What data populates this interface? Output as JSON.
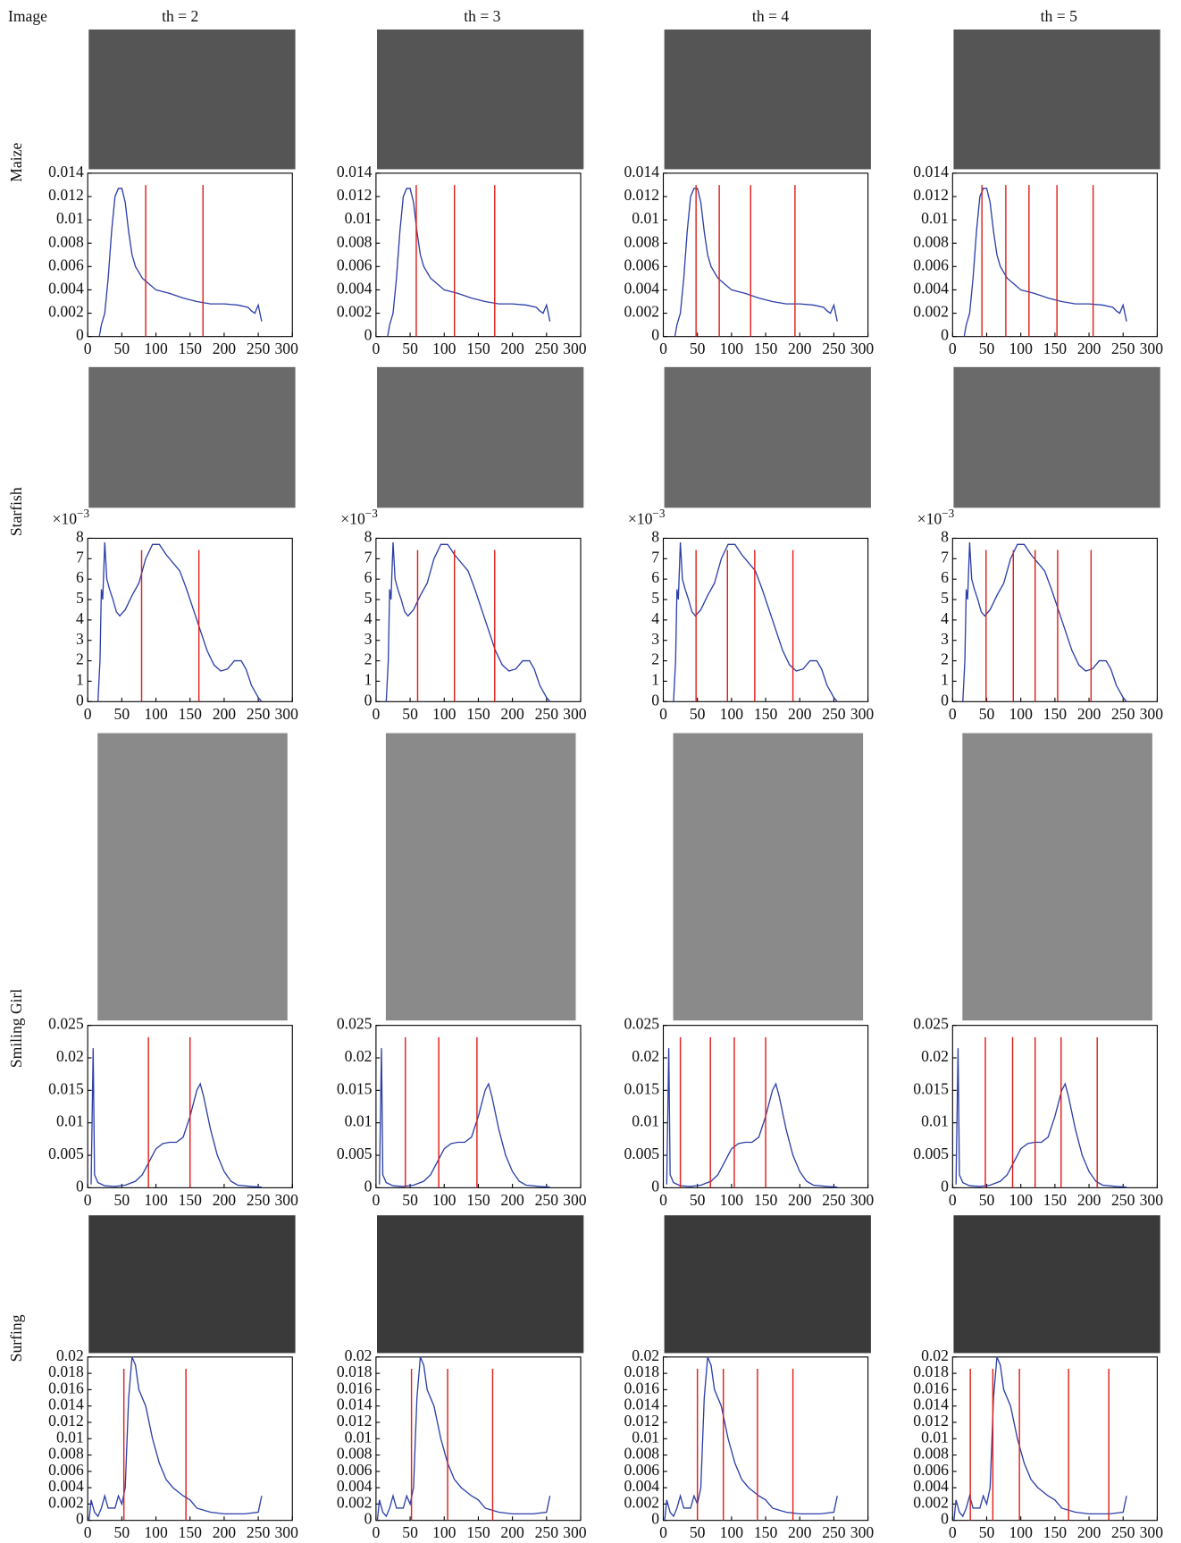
{
  "column_headers": [
    "Image",
    "th = 2",
    "th = 3",
    "th = 4",
    "th = 5"
  ],
  "chart_data": [
    {
      "type": "line",
      "row_label": "Maize",
      "color": "#2b3fa8",
      "threshold_color": "#e0201b",
      "x": [
        17,
        20,
        25,
        30,
        35,
        40,
        45,
        50,
        55,
        60,
        65,
        70,
        80,
        90,
        100,
        120,
        140,
        160,
        180,
        200,
        220,
        235,
        240,
        245,
        250,
        255
      ],
      "values": [
        0,
        0.001,
        0.002,
        0.005,
        0.009,
        0.012,
        0.0127,
        0.0127,
        0.0115,
        0.009,
        0.007,
        0.006,
        0.005,
        0.0045,
        0.004,
        0.0037,
        0.0033,
        0.003,
        0.0028,
        0.0028,
        0.0027,
        0.0025,
        0.0022,
        0.002,
        0.0027,
        0.0013
      ],
      "thresholds": [
        [
          85,
          169
        ],
        [
          59,
          115,
          174
        ],
        [
          48,
          82,
          128,
          193
        ],
        [
          43,
          78,
          112,
          153,
          206
        ]
      ],
      "xlim": [
        0,
        300
      ],
      "xticks": [
        0,
        50,
        100,
        150,
        200,
        250,
        300
      ],
      "ylim": [
        0,
        0.014
      ],
      "yticks": [
        0,
        0.002,
        0.004,
        0.006,
        0.008,
        0.01,
        0.012,
        0.014
      ]
    },
    {
      "type": "line",
      "row_label": "Starfish",
      "color": "#2b3fa8",
      "threshold_color": "#e0201b",
      "y_scale_base": "×10",
      "y_scale_exponent": "−3",
      "x": [
        15,
        18,
        20,
        22,
        25,
        28,
        32,
        37,
        42,
        47,
        55,
        65,
        75,
        85,
        95,
        105,
        115,
        125,
        135,
        145,
        155,
        165,
        175,
        185,
        195,
        205,
        215,
        225,
        232,
        240,
        250,
        255
      ],
      "values": [
        0,
        2,
        5.5,
        5,
        7.8,
        6,
        5.5,
        5,
        4.4,
        4.2,
        4.5,
        5.2,
        5.8,
        7,
        7.7,
        7.7,
        7.2,
        6.8,
        6.4,
        5.5,
        4.5,
        3.5,
        2.5,
        1.8,
        1.5,
        1.6,
        2,
        2,
        1.6,
        0.8,
        0.2,
        0
      ],
      "thresholds": [
        [
          79,
          163
        ],
        [
          61,
          115,
          174
        ],
        [
          48,
          94,
          134,
          190
        ],
        [
          49,
          89,
          121,
          154,
          203
        ]
      ],
      "xlim": [
        0,
        300
      ],
      "xticks": [
        0,
        50,
        100,
        150,
        200,
        250,
        300
      ],
      "ylim": [
        0,
        8
      ],
      "yticks": [
        0,
        1,
        2,
        3,
        4,
        5,
        6,
        7,
        8
      ]
    },
    {
      "type": "line",
      "row_label": "Smiling Girl",
      "color": "#2b3fa8",
      "threshold_color": "#e0201b",
      "x": [
        5,
        8,
        10,
        15,
        25,
        40,
        55,
        70,
        80,
        90,
        100,
        110,
        120,
        130,
        140,
        150,
        160,
        165,
        170,
        180,
        190,
        200,
        210,
        220,
        240,
        255
      ],
      "values": [
        0.0005,
        0.0215,
        0.002,
        0.0008,
        0.0003,
        0.0002,
        0.0004,
        0.001,
        0.002,
        0.004,
        0.006,
        0.0068,
        0.007,
        0.007,
        0.0078,
        0.011,
        0.015,
        0.016,
        0.014,
        0.009,
        0.005,
        0.0025,
        0.001,
        0.0004,
        0.0002,
        0.0001
      ],
      "thresholds": [
        [
          89,
          150
        ],
        [
          43,
          92,
          148
        ],
        [
          25,
          69,
          104,
          150
        ],
        [
          48,
          88,
          121,
          159,
          212
        ]
      ],
      "xlim": [
        0,
        300
      ],
      "xticks": [
        0,
        50,
        100,
        150,
        200,
        250,
        300
      ],
      "ylim": [
        0,
        0.025
      ],
      "yticks": [
        0,
        0.005,
        0.01,
        0.015,
        0.02,
        0.025
      ]
    },
    {
      "type": "line",
      "row_label": "Surfing",
      "color": "#2b3fa8",
      "threshold_color": "#e0201b",
      "x": [
        2,
        5,
        10,
        15,
        20,
        25,
        30,
        40,
        45,
        50,
        55,
        60,
        65,
        70,
        75,
        85,
        95,
        105,
        115,
        125,
        140,
        150,
        160,
        180,
        200,
        230,
        250,
        255
      ],
      "values": [
        0,
        0.0025,
        0.001,
        0.0005,
        0.0015,
        0.003,
        0.0015,
        0.0015,
        0.003,
        0.002,
        0.004,
        0.015,
        0.02,
        0.019,
        0.016,
        0.014,
        0.01,
        0.007,
        0.005,
        0.004,
        0.003,
        0.0025,
        0.0015,
        0.001,
        0.0008,
        0.0008,
        0.001,
        0.003
      ],
      "thresholds": [
        [
          53,
          144
        ],
        [
          52,
          105,
          171
        ],
        [
          50,
          88,
          138,
          190
        ],
        [
          26,
          59,
          98,
          170,
          229
        ]
      ],
      "xlim": [
        0,
        300
      ],
      "xticks": [
        0,
        50,
        100,
        150,
        200,
        250,
        300
      ],
      "ylim": [
        0,
        0.02
      ],
      "yticks": [
        0,
        0.002,
        0.004,
        0.006,
        0.008,
        0.01,
        0.012,
        0.014,
        0.016,
        0.018,
        0.02
      ]
    }
  ]
}
